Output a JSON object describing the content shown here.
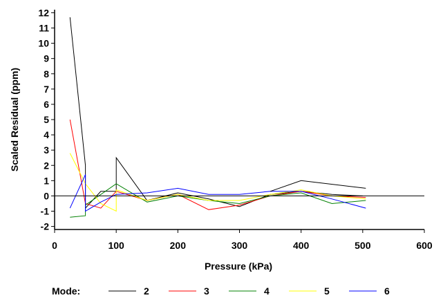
{
  "chart_data": {
    "type": "line",
    "xlabel": "Pressure (kPa)",
    "ylabel": "Scaled Residual (ppm)",
    "xlim": [
      0,
      600
    ],
    "ylim": [
      -2.2,
      12.2
    ],
    "xticks": [
      0,
      100,
      200,
      300,
      400,
      500,
      600
    ],
    "yticks": [
      -2,
      -1,
      0,
      1,
      2,
      3,
      4,
      5,
      6,
      7,
      8,
      9,
      10,
      11,
      12
    ],
    "zero_line": true,
    "grid": false,
    "legend_position": "bottom",
    "legend_title": "Mode:",
    "series": [
      {
        "name": "2",
        "color": "#000000",
        "x": [
          25,
          50,
          50,
          75,
          100,
          100,
          150,
          200,
          250,
          300,
          350,
          400,
          450,
          500
        ],
        "y": [
          11.7,
          2.0,
          -0.8,
          0.3,
          0.3,
          2.5,
          -0.3,
          0.2,
          -0.2,
          -0.7,
          0.1,
          0.3,
          0.1,
          0.0
        ]
      },
      {
        "name": "3",
        "color": "#ff0000",
        "x": [
          25,
          50,
          75,
          100,
          150,
          200,
          250,
          300,
          350,
          400,
          450,
          505
        ],
        "y": [
          5.0,
          -0.5,
          -0.8,
          0.3,
          -0.3,
          0.1,
          -0.9,
          -0.6,
          0.0,
          0.3,
          0.0,
          -0.1
        ]
      },
      {
        "name": "4",
        "color": "#008000",
        "x": [
          25,
          50,
          50,
          100,
          150,
          200,
          250,
          300,
          350,
          400,
          450,
          505
        ],
        "y": [
          -1.4,
          -1.3,
          -0.6,
          0.8,
          -0.4,
          0.0,
          -0.3,
          -0.5,
          0.0,
          0.2,
          -0.5,
          -0.3
        ]
      },
      {
        "name": "5",
        "color": "#ffff00",
        "x": [
          25,
          50,
          75,
          100,
          100,
          150,
          200,
          250,
          300,
          350,
          400,
          450,
          505
        ],
        "y": [
          2.8,
          0.8,
          -0.5,
          -1.0,
          0.4,
          -0.3,
          0.1,
          -0.3,
          -0.3,
          0.1,
          0.4,
          0.0,
          -0.2
        ]
      },
      {
        "name": "6",
        "color": "#0000ff",
        "x": [
          25,
          50,
          50,
          75,
          100,
          150,
          200,
          250,
          300,
          350,
          400,
          450,
          505
        ],
        "y": [
          -0.8,
          1.4,
          -1.0,
          -0.4,
          0.1,
          0.2,
          0.5,
          0.1,
          0.1,
          0.3,
          0.3,
          -0.2,
          -0.8
        ]
      },
      {
        "name": "",
        "color": "#000000",
        "x": [
          350,
          400,
          505
        ],
        "y": [
          0.3,
          1.0,
          0.5
        ]
      }
    ]
  }
}
